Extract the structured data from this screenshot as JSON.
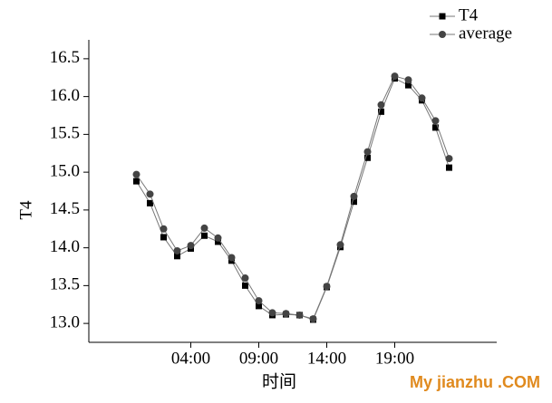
{
  "chart_data": {
    "type": "line",
    "x_label": "时间",
    "y_label": "T4",
    "x": [
      0,
      1,
      2,
      3,
      4,
      5,
      6,
      7,
      8,
      9,
      10,
      11,
      12,
      13,
      14,
      15,
      16,
      17,
      18,
      19,
      20,
      21,
      22,
      23
    ],
    "xlim": [
      -3.5,
      26.5
    ],
    "xticks": [
      {
        "value": 4,
        "label": "04:00"
      },
      {
        "value": 9,
        "label": "09:00"
      },
      {
        "value": 14,
        "label": "14:00"
      },
      {
        "value": 19,
        "label": "19:00"
      }
    ],
    "ylim": [
      12.75,
      16.75
    ],
    "yticks": [
      {
        "value": 13,
        "label": "13.0"
      },
      13.5,
      {
        "value": 14,
        "label": "14.0"
      },
      14.5,
      {
        "value": 15,
        "label": "15.0"
      },
      15.5,
      {
        "value": 16,
        "label": "16.0"
      },
      16.5
    ],
    "legend_position": "top-right",
    "series": [
      {
        "name": "T4",
        "color": "#000000",
        "marker": "square",
        "values": [
          14.88,
          14.59,
          14.14,
          13.89,
          13.99,
          14.16,
          14.08,
          13.83,
          13.5,
          13.23,
          13.11,
          13.12,
          13.11,
          13.05,
          13.48,
          14.01,
          14.61,
          15.19,
          15.8,
          16.24,
          16.15,
          15.95,
          15.59,
          15.06
        ]
      },
      {
        "name": "average",
        "color": "#444444",
        "marker": "circle",
        "values": [
          14.97,
          14.71,
          14.25,
          13.96,
          14.03,
          14.26,
          14.13,
          13.87,
          13.6,
          13.3,
          13.14,
          13.13,
          13.11,
          13.06,
          13.49,
          14.04,
          14.68,
          15.27,
          15.89,
          16.27,
          16.22,
          15.98,
          15.68,
          15.18
        ]
      }
    ],
    "watermark": "My jianzhu .COM"
  }
}
